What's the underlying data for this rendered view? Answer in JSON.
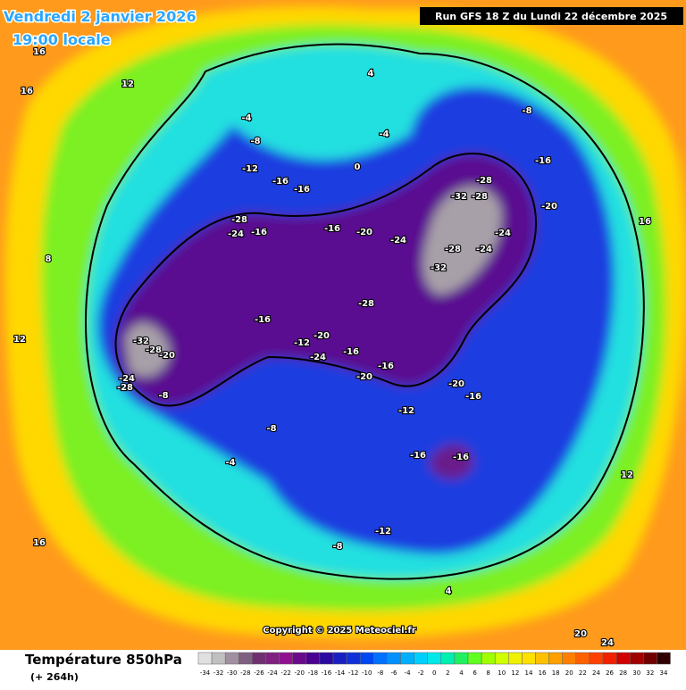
{
  "header": {
    "date": "Vendredi 2 janvier 2026",
    "time": "19:00 locale",
    "run": "Run GFS 18 Z du Lundi 22 décembre 2025"
  },
  "map": {
    "copyright": "Copyright © 2025 Meteociel.fr",
    "labels": [
      -32,
      -28,
      -20,
      -24,
      -28,
      -8,
      -28,
      -32,
      -28,
      -24,
      -28,
      -24,
      -32,
      -28,
      -20,
      -16,
      -20,
      -16,
      -24,
      -20,
      -16,
      -20,
      -16,
      -16,
      -16,
      -12,
      -8,
      -12,
      -16,
      -16,
      -12,
      -8,
      -4,
      -20,
      -24,
      -16,
      -8,
      4,
      0,
      -4,
      16,
      16,
      12,
      8,
      12,
      16,
      4,
      20,
      24,
      16,
      12,
      -4,
      -8,
      -12,
      -16,
      -16,
      -28,
      -24
    ]
  },
  "legend": {
    "title": "Température 850hPa",
    "lead": "(+ 264h)",
    "values": [
      -34,
      -32,
      -30,
      -28,
      -26,
      -24,
      -22,
      -20,
      -18,
      -16,
      -14,
      -12,
      -10,
      -8,
      -6,
      -4,
      -2,
      0,
      2,
      4,
      6,
      8,
      10,
      12,
      14,
      16,
      18,
      20,
      22,
      24,
      26,
      28,
      30,
      32,
      34
    ],
    "colors": [
      "#e0e0e0",
      "#c0c0c0",
      "#a090a0",
      "#806080",
      "#703070",
      "#802080",
      "#901090",
      "#6a0a8a",
      "#4a0090",
      "#2a0aa0",
      "#1a20c0",
      "#1030d8",
      "#0048f0",
      "#0070ff",
      "#0090ff",
      "#00b0ff",
      "#00d0ff",
      "#00e8e8",
      "#00f0b0",
      "#20f060",
      "#60ff20",
      "#a0ff00",
      "#d0ff00",
      "#f0f000",
      "#ffe000",
      "#ffc000",
      "#ffa000",
      "#ff8000",
      "#ff6000",
      "#ff4000",
      "#f02000",
      "#d00000",
      "#a00000",
      "#700000",
      "#300000"
    ]
  }
}
